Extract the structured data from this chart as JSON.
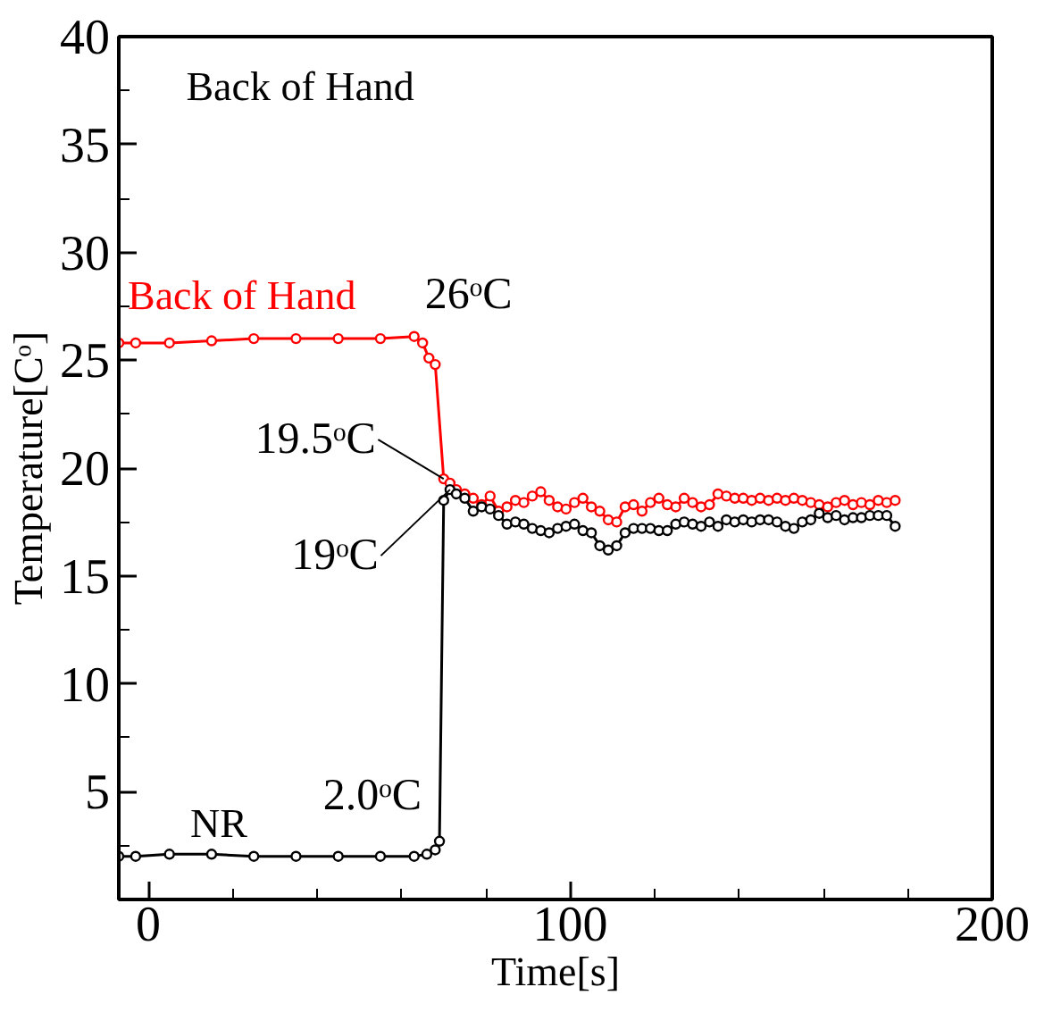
{
  "chart_data": {
    "type": "line",
    "title": "Back of Hand",
    "xlabel": "Time[s]",
    "ylabel": "Temperature[Cᵒ]",
    "xlim": [
      -7,
      200
    ],
    "ylim": [
      0,
      40
    ],
    "xticks": [
      0,
      {
        "value": 20,
        "label": null
      },
      {
        "value": 40,
        "label": null
      },
      {
        "value": 60,
        "label": null
      },
      {
        "value": 80,
        "label": null
      },
      100,
      {
        "value": 120,
        "label": null
      },
      {
        "value": 140,
        "label": null
      },
      {
        "value": 160,
        "label": null
      },
      {
        "value": 180,
        "label": null
      },
      200
    ],
    "yticks": [
      {
        "value": 2.5,
        "label": null
      },
      5,
      {
        "value": 7.5,
        "label": null
      },
      10,
      {
        "value": 12.5,
        "label": null
      },
      15,
      {
        "value": 17.5,
        "label": null
      },
      20,
      {
        "value": 22.5,
        "label": null
      },
      25,
      {
        "value": 27.5,
        "label": null
      },
      30,
      {
        "value": 32.5,
        "label": null
      },
      35,
      {
        "value": 37.5,
        "label": null
      },
      40
    ],
    "grid": false,
    "marker": "circle",
    "line_style": "solid",
    "series": [
      {
        "name": "Back of Hand",
        "color": "#ff0000",
        "x": [
          -7,
          -3,
          5,
          15,
          25,
          35,
          45,
          55,
          63,
          65,
          66.5,
          68,
          70,
          71.5,
          73,
          75,
          77,
          79,
          81,
          83,
          85,
          87,
          89,
          91,
          93,
          95,
          97,
          99,
          101,
          103,
          105,
          107,
          109,
          111,
          113,
          115,
          117,
          119,
          121,
          123,
          125,
          127,
          129,
          131,
          133,
          135,
          137,
          139,
          141,
          143,
          145,
          147,
          149,
          151,
          153,
          155,
          157,
          159,
          161,
          163,
          165,
          167,
          169,
          171,
          173,
          175,
          177
        ],
        "values": [
          25.8,
          25.8,
          25.8,
          25.9,
          26.0,
          26.0,
          26.0,
          26.0,
          26.1,
          25.8,
          25.1,
          24.8,
          19.5,
          19.3,
          19.0,
          18.8,
          18.6,
          18.3,
          18.7,
          18.0,
          18.2,
          18.5,
          18.4,
          18.7,
          18.9,
          18.5,
          18.2,
          18.1,
          18.4,
          18.6,
          18.2,
          18.0,
          17.6,
          17.5,
          18.2,
          18.3,
          18.0,
          18.4,
          18.6,
          18.3,
          18.2,
          18.6,
          18.4,
          18.2,
          18.3,
          18.8,
          18.7,
          18.6,
          18.6,
          18.5,
          18.6,
          18.5,
          18.6,
          18.5,
          18.6,
          18.5,
          18.4,
          18.3,
          18.2,
          18.4,
          18.5,
          18.3,
          18.4,
          18.3,
          18.5,
          18.4,
          18.5
        ]
      },
      {
        "name": "NR",
        "color": "#000000",
        "x": [
          -7,
          -3,
          5,
          15,
          25,
          35,
          45,
          55,
          63,
          66,
          68,
          69,
          70,
          71.5,
          73,
          75,
          77,
          79,
          81,
          83,
          85,
          87,
          89,
          91,
          93,
          95,
          97,
          99,
          101,
          103,
          105,
          107,
          109,
          111,
          113,
          115,
          117,
          119,
          121,
          123,
          125,
          127,
          129,
          131,
          133,
          135,
          137,
          139,
          141,
          143,
          145,
          147,
          149,
          151,
          153,
          155,
          157,
          159,
          161,
          163,
          165,
          167,
          169,
          171,
          173,
          175,
          177
        ],
        "values": [
          2.0,
          2.0,
          2.1,
          2.1,
          2.0,
          2.0,
          2.0,
          2.0,
          2.0,
          2.1,
          2.3,
          2.7,
          18.5,
          19.0,
          18.8,
          18.6,
          18.0,
          18.2,
          18.1,
          17.8,
          17.4,
          17.5,
          17.4,
          17.2,
          17.1,
          17.0,
          17.2,
          17.3,
          17.4,
          17.1,
          17.0,
          16.4,
          16.2,
          16.4,
          17.0,
          17.2,
          17.2,
          17.2,
          17.1,
          17.1,
          17.4,
          17.5,
          17.4,
          17.3,
          17.5,
          17.3,
          17.6,
          17.5,
          17.6,
          17.5,
          17.6,
          17.6,
          17.5,
          17.3,
          17.2,
          17.5,
          17.6,
          17.9,
          17.7,
          17.8,
          17.6,
          17.7,
          17.7,
          17.8,
          17.8,
          17.8,
          17.3
        ]
      }
    ],
    "annotations": [
      {
        "text": "26ᵒC",
        "x": 63,
        "y": 26.1
      },
      {
        "text": "19.5ᵒC",
        "x": 70,
        "y": 19.5
      },
      {
        "text": "19ᵒC",
        "x": 71.5,
        "y": 19.0
      },
      {
        "text": "2.0ᵒC",
        "x": 69,
        "y": 2.7
      }
    ]
  }
}
